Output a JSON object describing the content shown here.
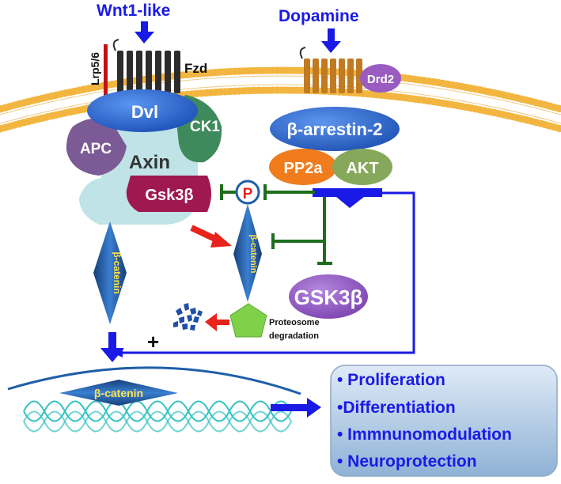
{
  "signals": {
    "wnt": "Wnt1-like",
    "dopamine": "Dopamine"
  },
  "receptors": {
    "lrp": "Lrp5/6",
    "fzd": "Fzd",
    "drd2": "Drd2"
  },
  "destruction_complex": {
    "dvl": "Dvl",
    "apc": "APC",
    "ck1": "CK1",
    "axin": "Axin",
    "gsk3b": "Gsk3β"
  },
  "arrestin_complex": {
    "barrestin": "β-arrestin-2",
    "pp2a": "PP2a",
    "akt": "AKT"
  },
  "phospho": "P",
  "beta_catenin": "β-catenin",
  "free_gsk3b": "GSK3β",
  "proteosome": [
    "Proteosome",
    "degradation"
  ],
  "plus_sign": "+",
  "outcomes": [
    "• Proliferation",
    "•Differentiation",
    "• Immnunomodulation",
    "• Neuroprotection"
  ],
  "colors": {
    "blue_text": "#1a1ae6",
    "membrane": "#f2b640",
    "dvl": "#2e6fd8",
    "apc": "#7b5a95",
    "ck1": "#3f8a5c",
    "axin": "#bfe3e6",
    "gsk3b": "#a01850",
    "barrestin": "#2e6fd8",
    "pp2a": "#f07c1e",
    "akt": "#86a85a",
    "drd2": "#9a5cc0",
    "catenin": "#1f5fa8",
    "green_inhibit": "#1d6e1d",
    "red_arrow": "#e8231b",
    "pentagon": "#7fd14a"
  }
}
